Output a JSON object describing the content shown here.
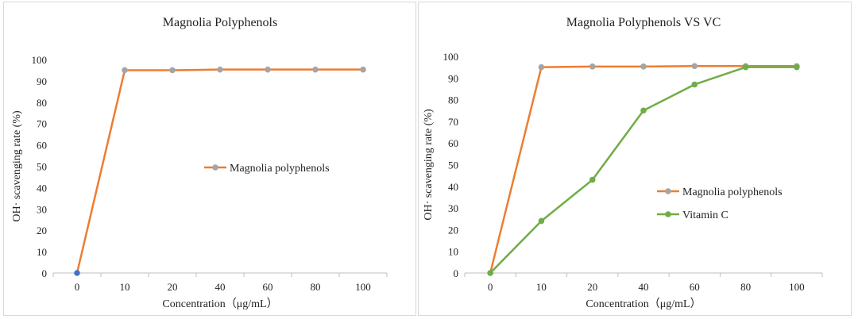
{
  "chart_data": [
    {
      "type": "line",
      "title": "Magnolia Polyphenols",
      "xlabel": "Concentration（μg/mL）",
      "ylabel": "OH· scavenging rate (%)",
      "categories": [
        "0",
        "10",
        "20",
        "40",
        "60",
        "80",
        "100"
      ],
      "ylim": [
        0,
        100
      ],
      "yticks": [
        0,
        10,
        20,
        30,
        40,
        50,
        60,
        70,
        80,
        90,
        100
      ],
      "grid": false,
      "legend_position": "center-right",
      "series": [
        {
          "name": "Magnolia polyphenols",
          "values": [
            0,
            95.0,
            95.0,
            95.3,
            95.3,
            95.3,
            95.3
          ],
          "color": "#ED7D31",
          "marker_color": "#A5A5A5",
          "first_marker_color": "#4472C4"
        }
      ]
    },
    {
      "type": "line",
      "title": "Magnolia Polyphenols VS VC",
      "xlabel": "Concentration（μg/mL）",
      "ylabel": "OH· scavenging rate (%)",
      "categories": [
        "0",
        "10",
        "20",
        "40",
        "60",
        "80",
        "100"
      ],
      "ylim": [
        0,
        100
      ],
      "yticks": [
        0,
        10,
        20,
        30,
        40,
        50,
        60,
        70,
        80,
        90,
        100
      ],
      "grid": false,
      "legend_position": "bottom-right",
      "series": [
        {
          "name": "Magnolia polyphenols",
          "values": [
            0,
            95.0,
            95.3,
            95.3,
            95.5,
            95.5,
            95.5
          ],
          "color": "#ED7D31",
          "marker_color": "#A5A5A5"
        },
        {
          "name": "Vitamin C",
          "values": [
            0,
            24,
            43,
            75,
            87,
            95,
            95
          ],
          "color": "#70AD47",
          "marker_color": "#70AD47"
        }
      ]
    }
  ]
}
